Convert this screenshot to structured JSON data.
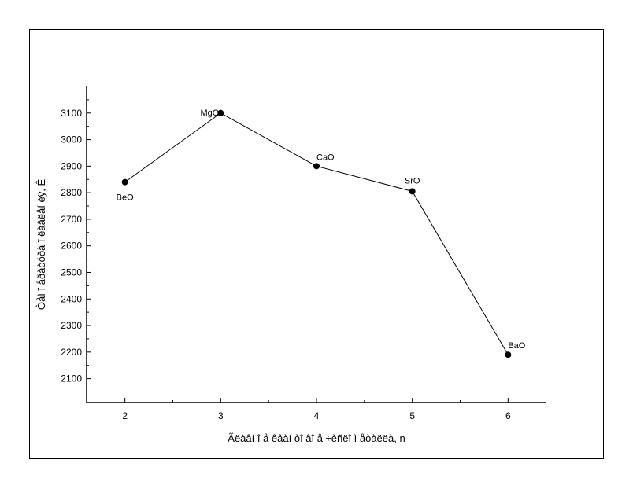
{
  "chart_data": {
    "type": "line",
    "xlabel": "Ãëàâí î å êâàí òî âî å ÷èñëî  ì åòàëëà, n",
    "ylabel": "Òåì ï åðàòóðà ï ëàâëåí èÿ, Ê",
    "x_ticks": [
      "2",
      "3",
      "4",
      "5",
      "6"
    ],
    "y_ticks": [
      "2100",
      "2200",
      "2300",
      "2400",
      "2500",
      "2600",
      "2700",
      "2800",
      "2900",
      "3000",
      "3100"
    ],
    "xlim": [
      1.6,
      6.4
    ],
    "ylim": [
      2010,
      3200
    ],
    "grid": false,
    "points": [
      {
        "x": 2,
        "y": 2840,
        "label": "BeO",
        "label_pos": "below"
      },
      {
        "x": 3,
        "y": 3100,
        "label": "MgO",
        "label_pos": "left"
      },
      {
        "x": 4,
        "y": 2900,
        "label": "CaO",
        "label_pos": "above-right"
      },
      {
        "x": 5,
        "y": 2805,
        "label": "SrO",
        "label_pos": "above"
      },
      {
        "x": 6,
        "y": 2190,
        "label": "BaO",
        "label_pos": "above-right"
      }
    ],
    "line_color": "#000000",
    "marker_color": "#000000"
  }
}
